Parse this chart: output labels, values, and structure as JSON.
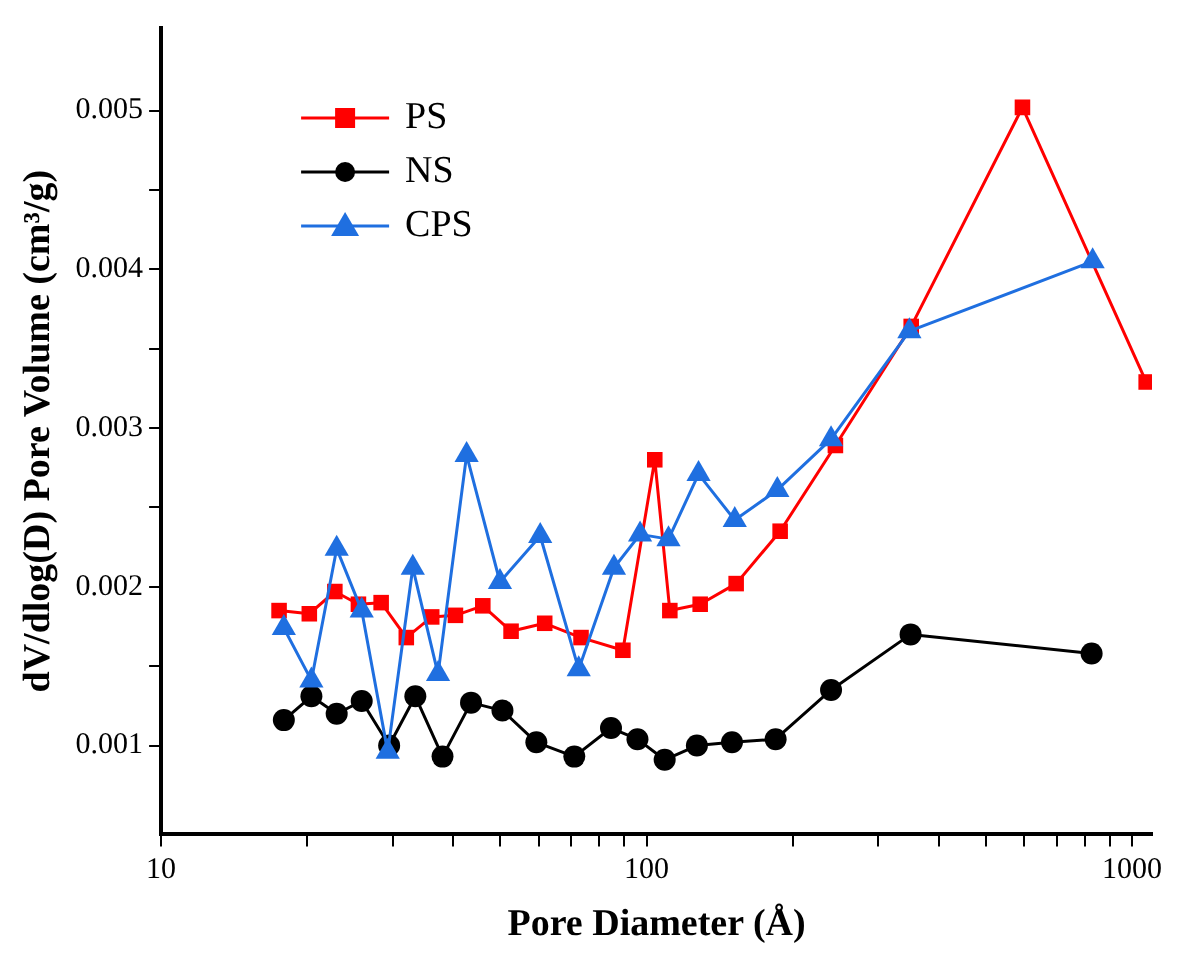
{
  "chart_data": {
    "type": "line",
    "xlabel": "Pore Diameter (Å)",
    "ylabel": "dV/dlog(D) Pore Volume (cm³/g)",
    "log": "x",
    "xlim": [
      10,
      1100
    ],
    "ylim": [
      0.00044,
      0.00552
    ],
    "xticks": [
      10,
      {
        "value": 20,
        "label": null
      },
      {
        "value": 30,
        "label": null
      },
      {
        "value": 40,
        "label": null
      },
      {
        "value": 50,
        "label": null
      },
      {
        "value": 60,
        "label": null
      },
      {
        "value": 70,
        "label": null
      },
      {
        "value": 80,
        "label": null
      },
      {
        "value": 90,
        "label": null
      },
      100,
      {
        "value": 200,
        "label": null
      },
      {
        "value": 300,
        "label": null
      },
      {
        "value": 400,
        "label": null
      },
      {
        "value": 500,
        "label": null
      },
      {
        "value": 600,
        "label": null
      },
      {
        "value": 700,
        "label": null
      },
      {
        "value": 800,
        "label": null
      },
      {
        "value": 900,
        "label": null
      },
      1000
    ],
    "yticks": [
      0.001,
      {
        "value": 0.0015,
        "label": null
      },
      0.002,
      {
        "value": 0.0025,
        "label": null
      },
      0.003,
      {
        "value": 0.0035,
        "label": null
      },
      0.004,
      {
        "value": 0.0045,
        "label": null
      },
      0.005
    ],
    "grid": false,
    "legend": "top left",
    "line_style": "solid",
    "series": [
      {
        "name": "PS",
        "color": "#ff0000",
        "marker": "square",
        "x": [
          17.5,
          20.2,
          22.8,
          25.5,
          28.4,
          32.0,
          36.1,
          40.4,
          46.0,
          52.6,
          61.7,
          73.3,
          89.4,
          104,
          111.7,
          129,
          153,
          188.5,
          245,
          351,
          595,
          1070
        ],
        "values": [
          0.00185,
          0.00183,
          0.00197,
          0.00189,
          0.0019,
          0.00168,
          0.00181,
          0.00182,
          0.00188,
          0.00172,
          0.00177,
          0.00168,
          0.0016,
          0.0028,
          0.00185,
          0.00189,
          0.00202,
          0.00235,
          0.00289,
          0.00364,
          0.00502,
          0.00329
        ]
      },
      {
        "name": "NS",
        "color": "#000000",
        "marker": "circle",
        "x": [
          17.9,
          20.4,
          23,
          25.9,
          29.5,
          33.4,
          38,
          43.5,
          50.5,
          59.3,
          71,
          84.5,
          95.8,
          109,
          127,
          150,
          184.5,
          240,
          350,
          826
        ],
        "values": [
          0.00116,
          0.00131,
          0.0012,
          0.00128,
          0.001,
          0.00131,
          0.00093,
          0.00127,
          0.00122,
          0.00102,
          0.00093,
          0.00111,
          0.00104,
          0.00091,
          0.001,
          0.00102,
          0.00104,
          0.00135,
          0.0017,
          0.00158
        ]
      },
      {
        "name": "CPS",
        "color": "#1f6fe0",
        "marker": "triangle",
        "x": [
          17.9,
          20.4,
          23,
          25.9,
          29.3,
          33,
          37.2,
          42.6,
          49.9,
          60.4,
          72.5,
          85.7,
          97,
          111,
          128,
          152,
          186,
          240,
          348,
          830
        ],
        "values": [
          0.00174,
          0.00141,
          0.00224,
          0.00185,
          0.00096,
          0.00212,
          0.00145,
          0.00283,
          0.00203,
          0.00232,
          0.00148,
          0.00212,
          0.00233,
          0.0023,
          0.00271,
          0.00242,
          0.00261,
          0.00293,
          0.00361,
          0.00405
        ]
      }
    ]
  }
}
